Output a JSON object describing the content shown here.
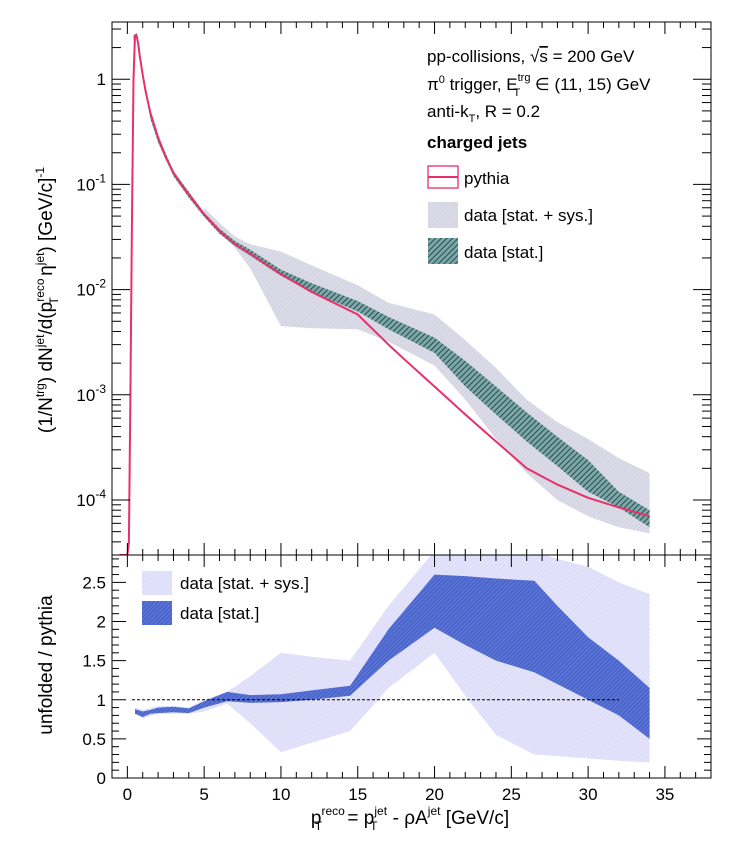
{
  "chart_data": [
    {
      "type": "line",
      "yscale": "log",
      "xlim": [
        -1,
        38
      ],
      "ylim": [
        3e-05,
        3.5
      ],
      "colors": {
        "pythia": "#e8306a",
        "sys_band": "#d5d5e3",
        "stat_band": "#3c6e70"
      },
      "yticks": [
        {
          "v": 1,
          "base": "1",
          "exp": ""
        },
        {
          "v": 0.1,
          "base": "10",
          "exp": "-1"
        },
        {
          "v": 0.01,
          "base": "10",
          "exp": "-2"
        },
        {
          "v": 0.001,
          "base": "10",
          "exp": "-3"
        },
        {
          "v": 0.0001,
          "base": "10",
          "exp": "-4"
        }
      ],
      "ylabel": {
        "p1": "(1/N",
        "p1sup": "trg",
        "p2": ") dN",
        "p2sup": "jet",
        "p3": "/d(p",
        "p3sup": "reco",
        "p3sub": "T",
        "p4": " η",
        "p4sup": "jet",
        "p5": ") [GeV/c]",
        "p5sup": "-1"
      },
      "annotations": {
        "line1_a": "pp-collisions, ",
        "line1_sqrt": "√",
        "line1_s": "s",
        "line1_b": " = 200 GeV",
        "line2_a": "π",
        "line2_sup0": "0",
        "line2_b": " trigger, E",
        "line2_sup": "trg",
        "line2_sub": "T",
        "line2_c": " ∈ (11, 15) GeV",
        "line3_a": "anti-k",
        "line3_sub": "T",
        "line3_b": ", R = 0.2",
        "line4": "charged jets"
      },
      "legend": {
        "pythia": "pythia",
        "sys": "data [stat. + sys.]",
        "stat": "data [stat.]"
      },
      "series": [
        {
          "name": "pythia",
          "x": [
            -0.5,
            0,
            0.1,
            0.2,
            0.3,
            0.4,
            0.5,
            0.6,
            0.7,
            0.8,
            1,
            1.2,
            1.5,
            2,
            2.5,
            3,
            3.5,
            4,
            5,
            6,
            7,
            8,
            10,
            12,
            15,
            17,
            18,
            20,
            22,
            24,
            26,
            28,
            30,
            32,
            34
          ],
          "y": [
            3e-05,
            3e-05,
            4e-05,
            0.001,
            0.05,
            1.0,
            2.6,
            2.6,
            2.2,
            1.7,
            1.1,
            0.75,
            0.48,
            0.28,
            0.18,
            0.13,
            0.1,
            0.08,
            0.052,
            0.036,
            0.027,
            0.022,
            0.014,
            0.0095,
            0.0058,
            0.003,
            0.0022,
            0.0012,
            0.00065,
            0.00036,
            0.0002,
            0.00014,
            0.000105,
            8.5e-05,
            7e-05
          ]
        },
        {
          "name": "data [stat.]",
          "x": [
            0.4,
            0.6,
            0.8,
            1,
            1.5,
            2,
            3,
            4,
            5,
            6,
            7,
            8,
            10,
            12,
            15,
            17,
            20,
            22,
            24,
            26,
            28,
            30,
            32,
            34
          ],
          "lo": [
            2.3,
            2.5,
            1.7,
            1.0,
            0.42,
            0.25,
            0.12,
            0.075,
            0.049,
            0.034,
            0.026,
            0.021,
            0.0135,
            0.0095,
            0.0062,
            0.0042,
            0.0025,
            0.0012,
            0.00065,
            0.00036,
            0.00021,
            0.00012,
            8.5e-05,
            5.5e-05
          ],
          "hi": [
            2.6,
            2.75,
            2.0,
            1.2,
            0.5,
            0.29,
            0.135,
            0.085,
            0.054,
            0.038,
            0.029,
            0.024,
            0.0155,
            0.0115,
            0.0078,
            0.0055,
            0.0035,
            0.0021,
            0.0012,
            0.00068,
            0.0004,
            0.00024,
            0.00012,
            8e-05
          ]
        },
        {
          "name": "data [stat. + sys.]",
          "x": [
            5,
            6,
            7,
            8,
            10,
            12,
            15,
            17,
            20,
            22,
            24,
            26,
            28,
            30,
            32,
            34
          ],
          "lo": [
            0.05,
            0.035,
            0.025,
            0.016,
            0.0045,
            0.0043,
            0.0042,
            0.0032,
            0.0019,
            0.0009,
            0.00038,
            0.00018,
            0.0001,
            7e-05,
            5.5e-05,
            4.8e-05
          ],
          "hi": [
            0.06,
            0.043,
            0.032,
            0.027,
            0.023,
            0.017,
            0.011,
            0.0075,
            0.0058,
            0.0033,
            0.0018,
            0.0009,
            0.00055,
            0.00038,
            0.00025,
            0.00018
          ]
        }
      ]
    },
    {
      "type": "area",
      "xlim": [
        -1,
        38
      ],
      "ylim": [
        0,
        2.85
      ],
      "xticks": [
        0,
        5,
        10,
        15,
        20,
        25,
        30,
        35
      ],
      "yticks": [
        0,
        0.5,
        1,
        1.5,
        2,
        2.5
      ],
      "ylabel": "unfolded / pythia",
      "xlabel": {
        "a": "p",
        "a_sup": "reco",
        "a_sub": "T",
        "b": " = p",
        "b_sup": "jet",
        "b_sub": "T",
        "c": " - ρA",
        "c_sup": "jet",
        "d": " [GeV/c]"
      },
      "legend": {
        "sys": "data [stat. + sys.]",
        "stat": "data [stat.]"
      },
      "colors": {
        "sys_band": "#dcdcf8",
        "stat_band": "#4a63c8",
        "reference": "#000000"
      },
      "reference_line": 1,
      "series": [
        {
          "name": "data [stat. + sys.]",
          "x": [
            0.5,
            1,
            2,
            3,
            4,
            5,
            6.5,
            8,
            10,
            12,
            14.5,
            17,
            20,
            22,
            24,
            26.5,
            28,
            30,
            32,
            34
          ],
          "lo": [
            0.83,
            0.76,
            0.82,
            0.82,
            0.82,
            0.85,
            0.95,
            0.7,
            0.33,
            0.45,
            0.6,
            1.15,
            1.6,
            1.05,
            0.55,
            0.3,
            0.28,
            0.25,
            0.22,
            0.2
          ],
          "hi": [
            0.9,
            0.87,
            0.92,
            0.92,
            0.9,
            1.0,
            1.1,
            1.3,
            1.6,
            1.55,
            1.5,
            2.2,
            2.9,
            2.9,
            2.9,
            2.9,
            2.8,
            2.7,
            2.5,
            2.35
          ]
        },
        {
          "name": "data [stat.]",
          "x": [
            0.5,
            1,
            1.5,
            2,
            3,
            4,
            5,
            6.5,
            8,
            10,
            12,
            14.5,
            17,
            20,
            22,
            24,
            26.5,
            28,
            30,
            32,
            34
          ],
          "lo": [
            0.82,
            0.78,
            0.82,
            0.83,
            0.84,
            0.83,
            0.9,
            0.98,
            0.96,
            0.97,
            1.0,
            1.05,
            1.5,
            1.92,
            1.7,
            1.5,
            1.35,
            1.2,
            1.0,
            0.8,
            0.5
          ],
          "hi": [
            0.88,
            0.85,
            0.87,
            0.9,
            0.91,
            0.89,
            0.98,
            1.1,
            1.06,
            1.07,
            1.12,
            1.18,
            1.9,
            2.6,
            2.58,
            2.55,
            2.52,
            2.2,
            1.8,
            1.5,
            1.15
          ]
        }
      ]
    }
  ]
}
